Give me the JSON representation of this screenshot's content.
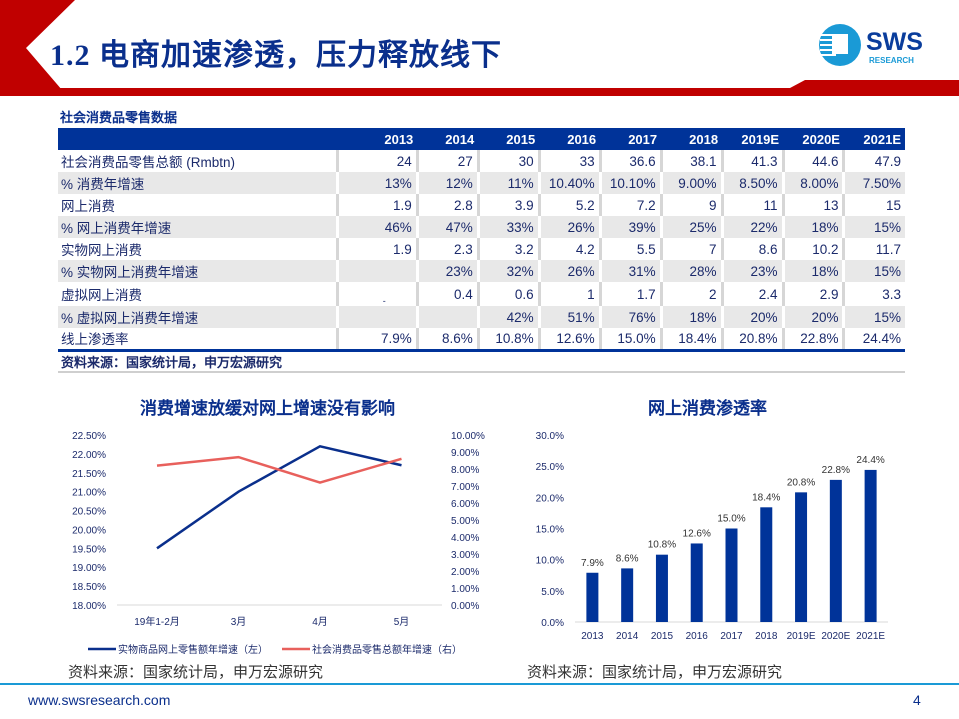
{
  "header": {
    "title": "1.2 电商加速渗透，压力释放线下",
    "logo": "SWS RESEARCH"
  },
  "colors": {
    "brand_red": "#c00000",
    "brand_blue": "#003399",
    "line_blue": "#0a2f8c",
    "line_red": "#e8605c",
    "bar": "#003399"
  },
  "table": {
    "title": "社会消费品零售数据",
    "columns": [
      "",
      "2013",
      "2014",
      "2015",
      "2016",
      "2017",
      "2018",
      "2019E",
      "2020E",
      "2021E"
    ],
    "rows": [
      [
        "社会消费品零售总额 (Rmbtn)",
        "24",
        "27",
        "30",
        "33",
        "36.6",
        "38.1",
        "41.3",
        "44.6",
        "47.9"
      ],
      [
        "% 消费年增速",
        "13%",
        "12%",
        "11%",
        "10.40%",
        "10.10%",
        "9.00%",
        "8.50%",
        "8.00%",
        "7.50%"
      ],
      [
        "网上消费",
        "1.9",
        "2.8",
        "3.9",
        "5.2",
        "7.2",
        "9",
        "11",
        "13",
        "15"
      ],
      [
        "% 网上消费年增速",
        "46%",
        "47%",
        "33%",
        "26%",
        "39%",
        "25%",
        "22%",
        "18%",
        "15%"
      ],
      [
        "实物网上消费",
        "1.9",
        "2.3",
        "3.2",
        "4.2",
        "5.5",
        "7",
        "8.6",
        "10.2",
        "11.7"
      ],
      [
        "% 实物网上消费年增速",
        "",
        "23%",
        "32%",
        "26%",
        "31%",
        "28%",
        "23%",
        "18%",
        "15%"
      ],
      [
        "虚拟网上消费",
        "-",
        "0.4",
        "0.6",
        "1",
        "1.7",
        "2",
        "2.4",
        "2.9",
        "3.3"
      ],
      [
        "% 虚拟网上消费年增速",
        "",
        "",
        "42%",
        "51%",
        "76%",
        "18%",
        "20%",
        "20%",
        "15%"
      ],
      [
        "线上渗透率",
        "7.9%",
        "8.6%",
        "10.8%",
        "12.6%",
        "15.0%",
        "18.4%",
        "20.8%",
        "22.8%",
        "24.4%"
      ]
    ],
    "source": "资料来源：国家统计局，申万宏源研究"
  },
  "chart_data": [
    {
      "type": "line",
      "title": "消费增速放缓对网上增速没有影响",
      "categories": [
        "19年1-2月",
        "3月",
        "4月",
        "5月"
      ],
      "y_left": {
        "ticks": [
          "18.00%",
          "18.50%",
          "19.00%",
          "19.50%",
          "20.00%",
          "20.50%",
          "21.00%",
          "21.50%",
          "22.00%",
          "22.50%"
        ],
        "range": [
          18,
          22.5
        ]
      },
      "y_right": {
        "ticks": [
          "0.00%",
          "1.00%",
          "2.00%",
          "3.00%",
          "4.00%",
          "5.00%",
          "6.00%",
          "7.00%",
          "8.00%",
          "9.00%",
          "10.00%"
        ],
        "range": [
          0,
          10
        ]
      },
      "series": [
        {
          "name": "实物商品网上零售额年增速（左）",
          "axis": "left",
          "color": "#0a2f8c",
          "values": [
            19.5,
            21.0,
            22.2,
            21.7
          ]
        },
        {
          "name": "社会消费品零售总额年增速（右）",
          "axis": "right",
          "color": "#e8605c",
          "values": [
            8.2,
            8.7,
            7.2,
            8.6
          ]
        }
      ],
      "legend": "bottom",
      "grid": false,
      "source": "资料来源：国家统计局，申万宏源研究"
    },
    {
      "type": "bar",
      "title": "网上消费渗透率",
      "categories": [
        "2013",
        "2014",
        "2015",
        "2016",
        "2017",
        "2018",
        "2019E",
        "2020E",
        "2021E"
      ],
      "values": [
        7.9,
        8.6,
        10.8,
        12.6,
        15.0,
        18.4,
        20.8,
        22.8,
        24.4
      ],
      "labels": [
        "7.9%",
        "8.6%",
        "10.8%",
        "12.6%",
        "15.0%",
        "18.4%",
        "20.8%",
        "22.8%",
        "24.4%"
      ],
      "y_ticks": [
        "0.0%",
        "5.0%",
        "10.0%",
        "15.0%",
        "20.0%",
        "25.0%",
        "30.0%"
      ],
      "ylim": [
        0,
        30
      ],
      "grid": false,
      "source": "资料来源：国家统计局，申万宏源研究"
    }
  ],
  "footer": {
    "url": "www.swsresearch.com",
    "page": "4"
  }
}
